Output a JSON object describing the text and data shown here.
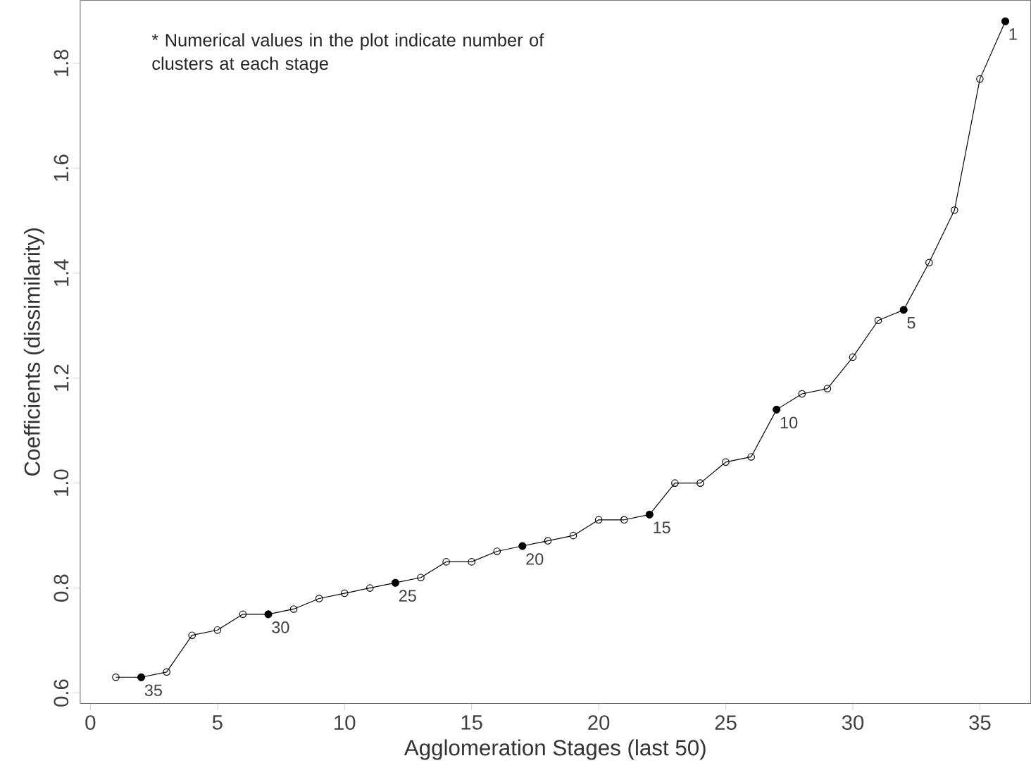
{
  "chart_data": {
    "type": "line",
    "xlabel": "Agglomeration Stages (last 50)",
    "ylabel": "Coefficients (dissimilarity)",
    "xlim": [
      -0.4,
      37.0
    ],
    "ylim": [
      0.58,
      1.92
    ],
    "xticks": [
      0,
      5,
      10,
      15,
      20,
      25,
      30,
      35
    ],
    "yticks": [
      0.6,
      0.8,
      {
        "value": 1,
        "label": "1.0"
      },
      1.2,
      1.4,
      1.6,
      1.8
    ],
    "marker": "circle",
    "line_style": "solid",
    "x": [
      1,
      2,
      3,
      4,
      5,
      6,
      7,
      8,
      9,
      10,
      11,
      12,
      13,
      14,
      15,
      16,
      17,
      18,
      19,
      20,
      21,
      22,
      23,
      24,
      25,
      26,
      27,
      28,
      29,
      30,
      31,
      32,
      33,
      34,
      35,
      36
    ],
    "series": [
      {
        "color": "#000000",
        "values": [
          0.63,
          0.63,
          0.64,
          0.71,
          0.72,
          0.75,
          0.75,
          0.76,
          0.78,
          0.79,
          0.8,
          0.81,
          0.82,
          0.85,
          0.85,
          0.87,
          0.88,
          0.89,
          0.9,
          0.93,
          0.93,
          0.94,
          1.0,
          1.0,
          1.04,
          1.05,
          1.14,
          1.17,
          1.18,
          1.24,
          1.31,
          1.33,
          1.42,
          1.52,
          1.77,
          1.88
        ]
      },
      {
        "type": "scatter",
        "color": "#000000",
        "x": [
          2,
          7,
          12,
          17,
          22,
          27,
          32,
          36
        ],
        "values": [
          0.63,
          0.75,
          0.81,
          0.88,
          0.94,
          1.14,
          1.33,
          1.88
        ]
      }
    ],
    "annotations": [
      "* Numerical values in the plot indicate number of clusters at each stage",
      {
        "text": "35",
        "x": 2,
        "y": 0.63
      },
      {
        "text": "30",
        "x": 7,
        "y": 0.75
      },
      {
        "text": "25",
        "x": 12,
        "y": 0.81
      },
      {
        "text": "20",
        "x": 17,
        "y": 0.88
      },
      {
        "text": "15",
        "x": 22,
        "y": 0.94
      },
      {
        "text": "10",
        "x": 27,
        "y": 1.14
      },
      {
        "text": "5",
        "x": 32,
        "y": 1.33
      },
      {
        "text": "1",
        "x": 36,
        "y": 1.88
      }
    ]
  }
}
